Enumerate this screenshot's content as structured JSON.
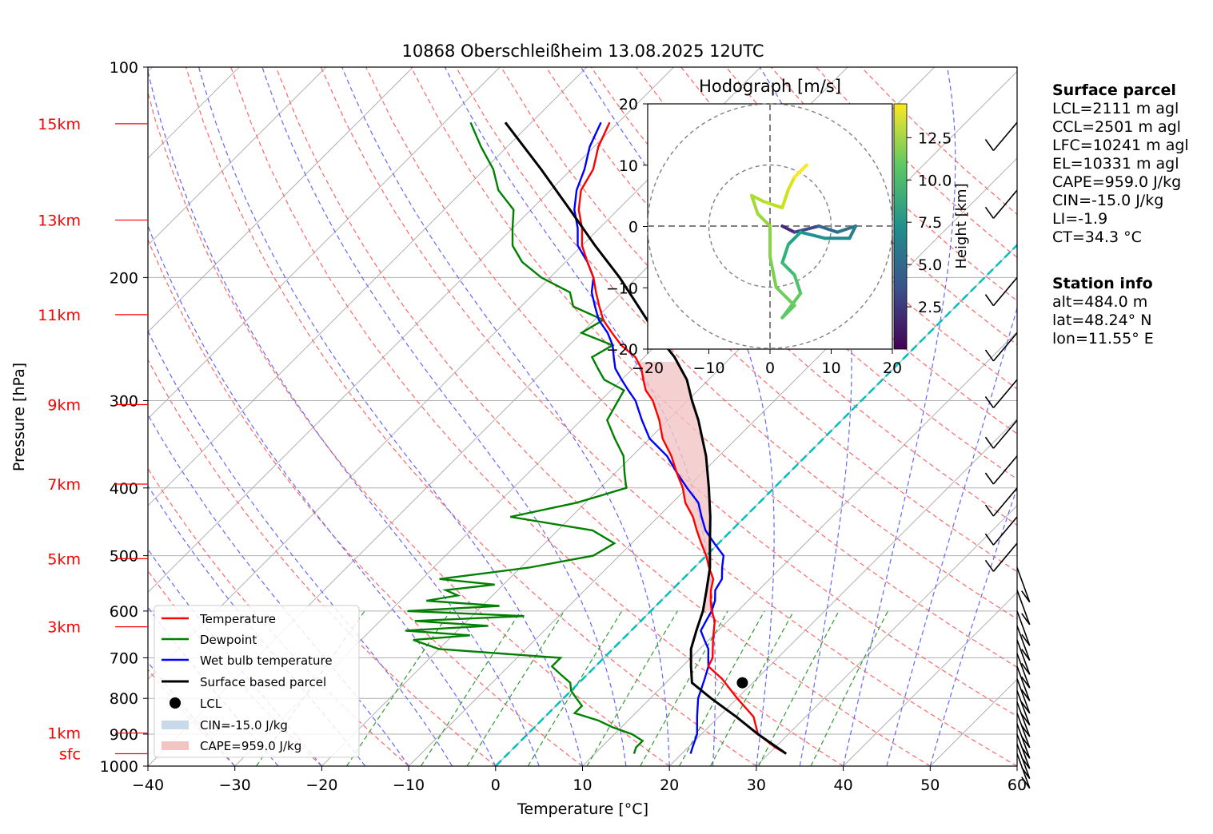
{
  "title": "10868 Oberschleißheim 13.08.2025 12UTC",
  "axes": {
    "xlabel": "Temperature [°C]",
    "ylabel": "Pressure [hPa]",
    "x_ticks": [
      "−40",
      "−30",
      "−20",
      "−10",
      "0",
      "10",
      "20",
      "30",
      "40",
      "50",
      "60"
    ],
    "y_ticks": [
      "100",
      "200",
      "300",
      "400",
      "500",
      "600",
      "700",
      "800",
      "900",
      "1000"
    ]
  },
  "height_labels": [
    "15km",
    "13km",
    "11km",
    "9km",
    "7km",
    "5km",
    "3km",
    "1km",
    "sfc"
  ],
  "legend": {
    "temperature": "Temperature",
    "dewpoint": "Dewpoint",
    "wetbulb": "Wet bulb temperature",
    "parcel": "Surface based parcel",
    "lcl": "LCL",
    "cin": "CIN=-15.0 J/kg",
    "cape": "CAPE=959.0 J/kg"
  },
  "hodograph": {
    "title": "Hodograph [m/s]",
    "x_ticks": [
      "−20",
      "−10",
      "0",
      "10",
      "20"
    ],
    "y_ticks": [
      "20",
      "10",
      "0",
      "−10",
      "−20"
    ],
    "colorbar_label": "Height [km]",
    "colorbar_ticks": [
      "12.5",
      "10.0",
      "7.5",
      "5.0",
      "2.5"
    ]
  },
  "surface_parcel": {
    "heading": "Surface parcel",
    "lines": [
      "LCL=2111 m agl",
      "CCL=2501 m agl",
      "LFC=10241 m agl",
      "EL=10331 m agl",
      "CAPE=959.0 J/kg",
      "CIN=-15.0 J/kg",
      "LI=-1.9",
      "CT=34.3 °C"
    ]
  },
  "station_info": {
    "heading": "Station info",
    "lines": [
      "alt=484.0 m",
      "lat=48.24° N",
      "lon=11.55° E"
    ]
  },
  "colors": {
    "temperature": "#ff0000",
    "dewpoint": "#008000",
    "wetbulb": "#0000ff",
    "parcel": "#000000",
    "cape_fill": "#f2c4c4",
    "cin_fill": "#c8d9ea",
    "isotherm_zero": "#00bfbf"
  },
  "chart_data": {
    "type": "line",
    "title": "10868 Oberschleißheim 13.08.2025 12UTC",
    "xlabel": "Temperature [°C]",
    "ylabel": "Pressure [hPa]",
    "xlim": [
      -40,
      60
    ],
    "ylim": [
      1000,
      100
    ],
    "y_scale": "log",
    "grid": true,
    "legend_position": "bottom-left",
    "series": [
      {
        "name": "Temperature",
        "pressure": [
          960,
          940,
          900,
          850,
          800,
          750,
          720,
          700,
          680,
          660,
          640,
          620,
          600,
          580,
          560,
          540,
          520,
          500,
          480,
          460,
          440,
          420,
          400,
          380,
          360,
          340,
          320,
          300,
          290,
          280,
          270,
          260,
          255,
          250,
          240,
          230,
          220,
          210,
          200,
          190,
          180,
          170,
          160,
          150,
          140,
          130,
          120
        ],
        "temperature": [
          32,
          30,
          26.5,
          24,
          20,
          16,
          13,
          12.5,
          11.5,
          10.5,
          9.5,
          8.5,
          7,
          5.7,
          4.5,
          3.5,
          1.7,
          0,
          -2,
          -4,
          -6,
          -8.5,
          -10.5,
          -13,
          -15.5,
          -18.5,
          -21,
          -24,
          -26,
          -27.5,
          -29,
          -31,
          -32.5,
          -34,
          -36.5,
          -39,
          -41,
          -43,
          -45,
          -47.5,
          -50,
          -52,
          -54.5,
          -56.5,
          -57.5,
          -59.5,
          -61
        ]
      },
      {
        "name": "Dewpoint",
        "pressure": [
          960,
          940,
          920,
          900,
          880,
          860,
          840,
          820,
          800,
          780,
          760,
          740,
          720,
          700,
          680,
          670,
          660,
          650,
          640,
          630,
          620,
          610,
          600,
          590,
          580,
          570,
          560,
          550,
          540,
          520,
          500,
          480,
          460,
          440,
          420,
          400,
          380,
          360,
          340,
          320,
          300,
          290,
          280,
          270,
          260,
          250,
          240,
          230,
          220,
          210,
          200,
          190,
          180,
          170,
          160,
          150,
          140,
          130,
          120
        ],
        "dewpoint": [
          14.5,
          14,
          14,
          12,
          9,
          6.5,
          3,
          3,
          1.5,
          0,
          -1,
          -3,
          -5,
          -5,
          -20,
          -22,
          -24,
          -18,
          -26,
          -17,
          -26,
          -14,
          -28,
          -18,
          -27,
          -24,
          -26,
          -21,
          -28,
          -19,
          -13,
          -12,
          -16,
          -27,
          -21,
          -17,
          -19,
          -21,
          -24,
          -27,
          -28,
          -28.5,
          -32,
          -34,
          -36,
          -35,
          -40,
          -39,
          -44,
          -46,
          -51,
          -55,
          -58,
          -60,
          -62,
          -66,
          -69,
          -73,
          -77
        ]
      },
      {
        "name": "Wet bulb temperature",
        "pressure": [
          960,
          940,
          900,
          850,
          800,
          750,
          720,
          700,
          680,
          660,
          640,
          620,
          600,
          580,
          560,
          540,
          520,
          500,
          480,
          460,
          440,
          420,
          400,
          380,
          360,
          340,
          320,
          300,
          290,
          280,
          270,
          260,
          250,
          240,
          230,
          220,
          210,
          200,
          190,
          180,
          170,
          160,
          150,
          140,
          130,
          120
        ],
        "wetbulb": [
          21,
          20.5,
          19.5,
          17.5,
          15.5,
          14,
          13,
          12,
          11,
          9.5,
          8,
          7.5,
          7,
          6.2,
          5,
          4.5,
          3.2,
          2,
          -0.5,
          -3,
          -5,
          -7,
          -10,
          -13,
          -16,
          -20,
          -23,
          -26,
          -28,
          -30,
          -32,
          -33.5,
          -35,
          -37,
          -39.5,
          -41.5,
          -43.5,
          -45,
          -47.5,
          -50.5,
          -52.5,
          -55,
          -57,
          -58.5,
          -60.5,
          -62
        ]
      },
      {
        "name": "Surface based parcel",
        "pressure": [
          960,
          900,
          850,
          800,
          760,
          720,
          680,
          640,
          600,
          560,
          520,
          480,
          440,
          400,
          360,
          320,
          300,
          280,
          260,
          240,
          220,
          200,
          180,
          160,
          140,
          120
        ],
        "temperature": [
          32,
          26.5,
          22,
          17,
          13,
          11,
          9,
          7.5,
          6,
          4,
          1.8,
          -1,
          -4,
          -7.5,
          -11.5,
          -16.5,
          -19.5,
          -22.5,
          -26.5,
          -31.5,
          -36.5,
          -42,
          -48.5,
          -55.5,
          -63.5,
          -73
        ]
      }
    ],
    "lcl": {
      "temperature": 18.8,
      "pressure": 760
    },
    "hodograph": {
      "xlim": [
        -20,
        20
      ],
      "ylim": [
        -20,
        20
      ],
      "rings": [
        10,
        20
      ],
      "height_range_km": [
        0,
        14.5
      ]
    },
    "wind_barbs": "right edge column, 100–960 hPa"
  }
}
